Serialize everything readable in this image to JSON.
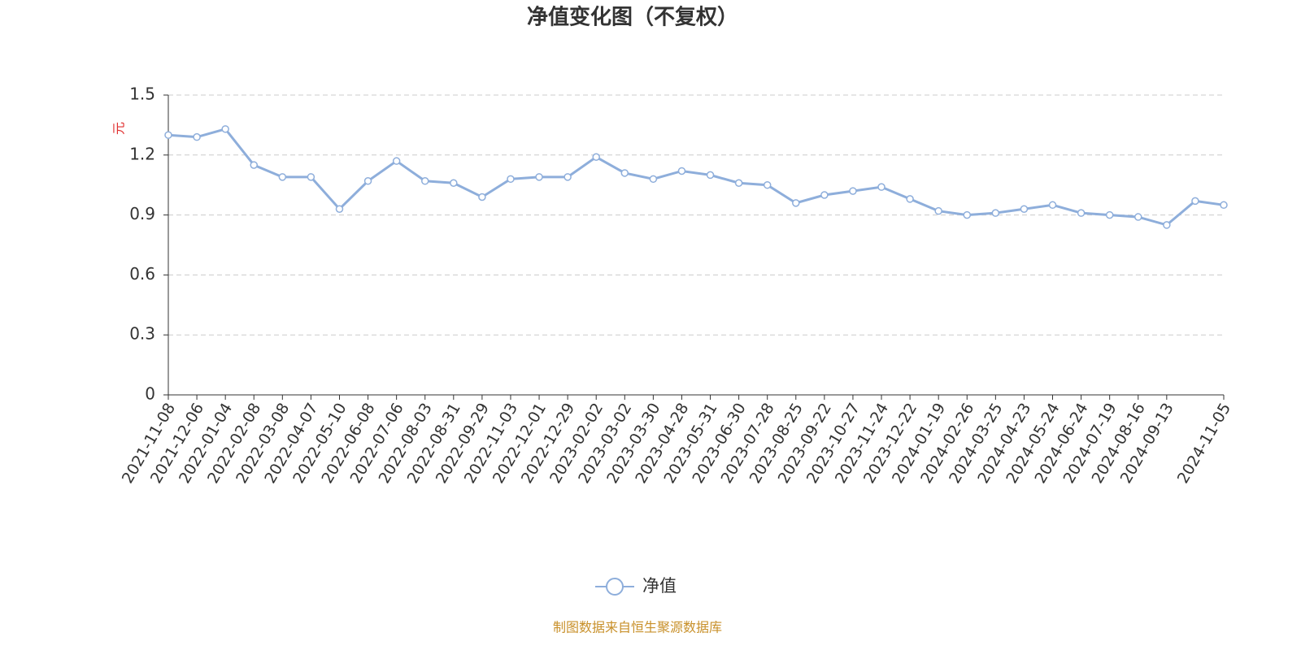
{
  "chart_data": {
    "type": "line",
    "title": "净值变化图（不复权）",
    "y_label": "元",
    "categories": [
      "2021-11-08",
      "2021-12-06",
      "2022-01-04",
      "2022-02-08",
      "2022-03-08",
      "2022-04-07",
      "2022-05-10",
      "2022-06-08",
      "2022-07-06",
      "2022-08-03",
      "2022-08-31",
      "2022-09-29",
      "2022-11-03",
      "2022-12-01",
      "2022-12-29",
      "2023-02-02",
      "2023-03-02",
      "2023-03-30",
      "2023-04-28",
      "2023-05-31",
      "2023-06-30",
      "2023-07-28",
      "2023-08-25",
      "2023-09-22",
      "2023-10-27",
      "2023-11-24",
      "2023-12-22",
      "2024-01-19",
      "2024-02-26",
      "2024-03-25",
      "2024-04-23",
      "2024-05-24",
      "2024-06-24",
      "2024-07-19",
      "2024-08-16",
      "2024-09-13",
      null,
      "2024-11-05"
    ],
    "series": [
      {
        "name": "净值",
        "color": "#8eaedb",
        "values": [
          1.3,
          1.29,
          1.33,
          1.15,
          1.09,
          1.09,
          0.93,
          1.07,
          1.17,
          1.07,
          1.06,
          0.99,
          1.08,
          1.09,
          1.09,
          1.19,
          1.11,
          1.08,
          1.12,
          1.1,
          1.06,
          1.05,
          0.96,
          1.0,
          1.02,
          1.04,
          0.98,
          0.92,
          0.9,
          0.91,
          0.93,
          0.95,
          0.91,
          0.9,
          0.89,
          0.85,
          0.97,
          0.95
        ]
      }
    ],
    "ylim": [
      0,
      1.5
    ],
    "yticks": [
      0,
      0.3,
      0.6,
      0.9,
      1.2,
      1.5
    ],
    "grid": true,
    "source": "制图数据来自恒生聚源数据库"
  }
}
